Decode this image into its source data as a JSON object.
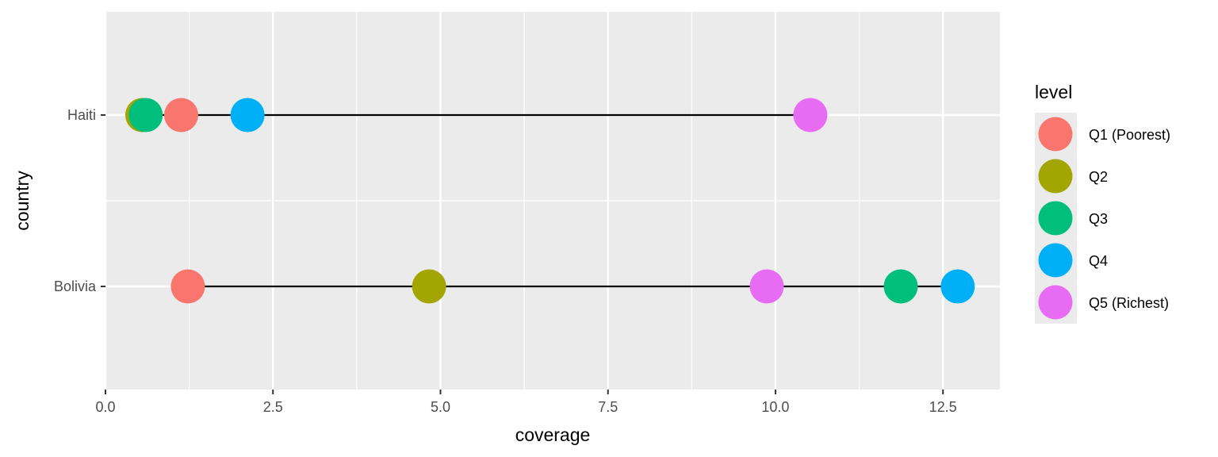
{
  "chart_data": {
    "type": "scatter",
    "xlabel": "coverage",
    "ylabel": "country",
    "xlim": [
      0,
      13.35
    ],
    "x_ticks": [
      0,
      2.5,
      5,
      7.5,
      10,
      12.5
    ],
    "x_tick_labels": [
      "0.0",
      "2.5",
      "5.0",
      "7.5",
      "10.0",
      "12.5"
    ],
    "categories": [
      "Bolivia",
      "Haiti"
    ],
    "legend": {
      "title": "level",
      "placement": "right"
    },
    "grid": true,
    "series": [
      {
        "name": "Q1 (Poorest)",
        "color": "#F8766D",
        "values": [
          1.23,
          1.13
        ]
      },
      {
        "name": "Q2",
        "color": "#A3A500",
        "values": [
          4.83,
          0.55
        ]
      },
      {
        "name": "Q3",
        "color": "#00BF7D",
        "values": [
          11.87,
          0.6
        ]
      },
      {
        "name": "Q4",
        "color": "#00B0F6",
        "values": [
          12.72,
          2.12
        ]
      },
      {
        "name": "Q5 (Richest)",
        "color": "#E76BF3",
        "values": [
          9.87,
          10.52
        ]
      }
    ]
  }
}
